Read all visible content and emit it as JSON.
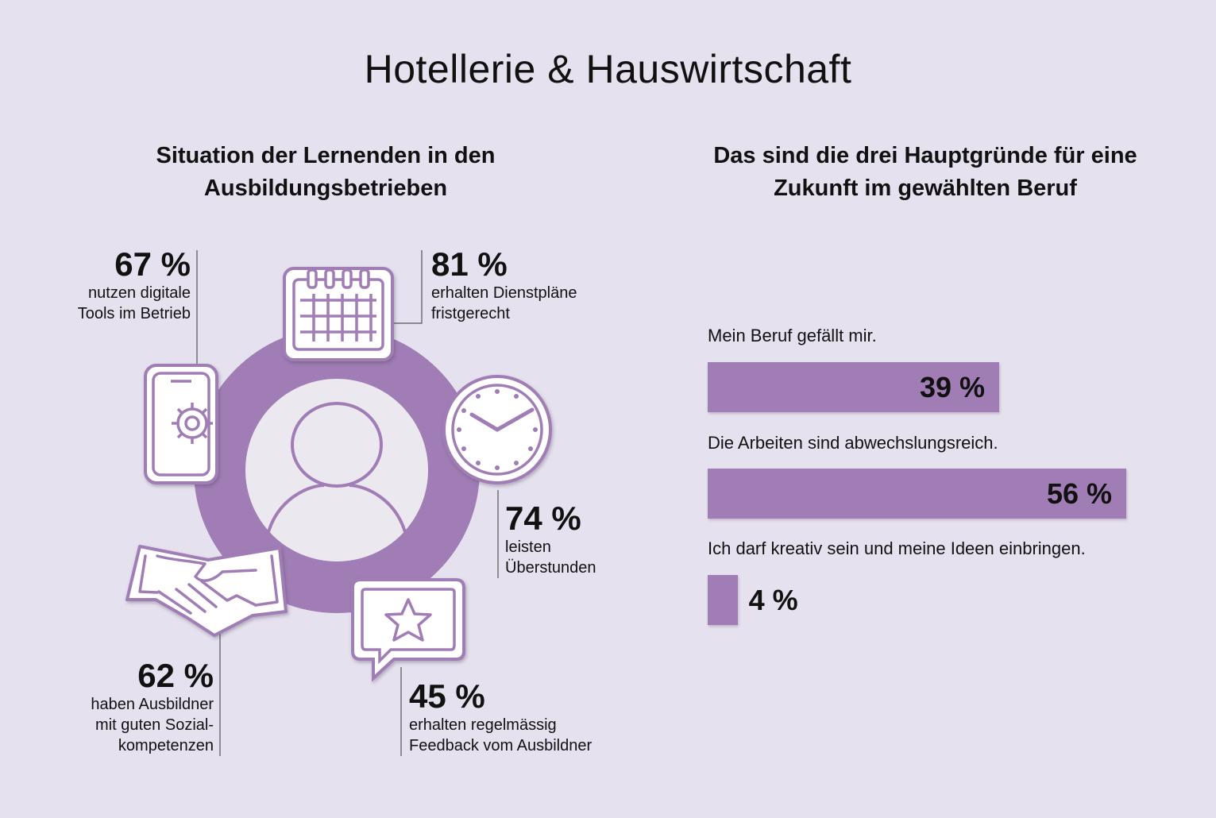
{
  "title": "Hotellerie & Hauswirtschaft",
  "colors": {
    "background": "#e5e1ee",
    "accent": "#a07db5",
    "icon_fill": "#ffffff"
  },
  "left_section": {
    "title_line1": "Situation der Lernenden in den",
    "title_line2": "Ausbildungsbetrieben",
    "stats": [
      {
        "value": "67 %",
        "line1": "nutzen digitale",
        "line2": "Tools im Betrieb",
        "icon": "smartphone-gear-icon"
      },
      {
        "value": "81 %",
        "line1": "erhalten Dienstpläne",
        "line2": "fristgerecht",
        "icon": "calendar-icon"
      },
      {
        "value": "74 %",
        "line1": "leisten",
        "line2": "Überstunden",
        "icon": "clock-icon"
      },
      {
        "value": "45 %",
        "line1": "erhalten regelmässig",
        "line2": "Feedback vom Ausbildner",
        "icon": "star-speech-bubble-icon"
      },
      {
        "value": "62 %",
        "line1": "haben Ausbildner",
        "line2": "mit guten Sozial-",
        "line3": "kompetenzen",
        "icon": "handshake-icon"
      }
    ],
    "center_icon": "person-icon"
  },
  "right_section": {
    "title_line1": "Das sind die drei Hauptgründe für eine",
    "title_line2": "Zukunft im gewählten Beruf"
  },
  "chart_data": {
    "type": "bar",
    "orientation": "horizontal",
    "categories": [
      "Mein Beruf gefällt mir.",
      "Die Arbeiten sind abwechslungsreich.",
      "Ich darf kreativ sein und meine Ideen einbringen."
    ],
    "values": [
      39,
      56,
      4
    ],
    "value_labels": [
      "39 %",
      "56 %",
      "4 %"
    ],
    "unit": "%",
    "xlim": [
      0,
      56
    ]
  }
}
